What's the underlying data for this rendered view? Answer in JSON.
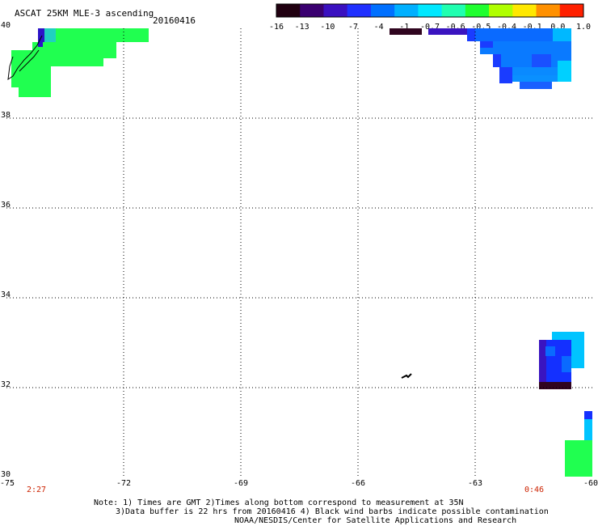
{
  "header": {
    "title": "ASCAT 25KM MLE-3 ascending",
    "date": "20160416"
  },
  "colorbar": {
    "ticks": [
      "-16",
      "-13",
      "-10",
      "-7",
      "-4",
      "-1",
      "-0.7",
      "-0.6",
      "-0.5",
      "-0.4",
      "-0.1",
      "0.0",
      "1.0"
    ],
    "colors": [
      "#200010",
      "#3a0070",
      "#3a10c0",
      "#2030ff",
      "#0070ff",
      "#00b0ff",
      "#00e8ff",
      "#20ffb0",
      "#20ff30",
      "#b0ff00",
      "#ffe800",
      "#ff9000",
      "#ff2000"
    ]
  },
  "axes": {
    "lat_ticks": [
      "40",
      "38",
      "36",
      "34",
      "32",
      "30"
    ],
    "lon_ticks": [
      "-75",
      "-72",
      "-69",
      "-66",
      "-63",
      "-60"
    ]
  },
  "times": {
    "left": "2:27",
    "right": "0:46"
  },
  "notes": {
    "line1": "Note: 1) Times are GMT 2)Times along bottom correspond to measurement at 35N",
    "line2": "3)Data buffer is 22 hrs from 20160416 4) Black wind barbs indicate possible contamination",
    "line3": "NOAA/NESDIS/Center for Satellite Applications and Research"
  }
}
